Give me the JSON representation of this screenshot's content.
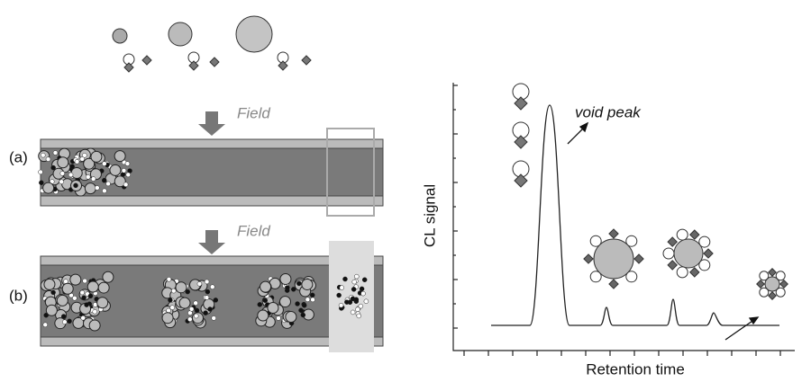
{
  "panel_a": {
    "label": "(a)",
    "field": "Field"
  },
  "panel_b": {
    "label": "(b)",
    "field": "Field"
  },
  "plot": {
    "annotation": "void peak",
    "y_label": "CL signal",
    "x_label": "Retention time"
  }
}
